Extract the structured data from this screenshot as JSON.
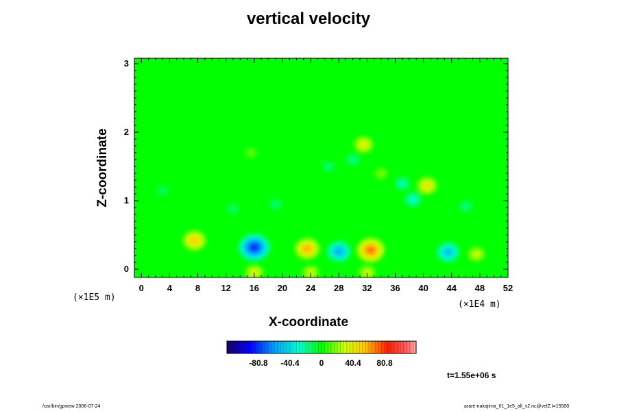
{
  "chart_data": {
    "type": "heatmap",
    "title": "vertical velocity",
    "xlabel": "X-coordinate",
    "ylabel": "Z-coordinate",
    "x_scale_label": "(×1E4 m)",
    "y_scale_label": "(×1E5 m)",
    "xlim": [
      -1,
      52
    ],
    "ylim": [
      -0.12,
      3.08
    ],
    "x_ticks": [
      "0",
      "4",
      "8",
      "12",
      "16",
      "20",
      "24",
      "28",
      "32",
      "36",
      "40",
      "44",
      "48",
      "52"
    ],
    "y_ticks": [
      "0",
      "1",
      "2",
      "3"
    ],
    "colorbar": {
      "range": [
        -121.2,
        121.2
      ],
      "tick_labels": [
        "-80.8",
        "-40.4",
        "0",
        "40.4",
        "80.8"
      ],
      "tick_values": [
        -80.8,
        -40.4,
        0,
        40.4,
        80.8
      ]
    },
    "background_value": 0,
    "features": [
      {
        "x": 7.5,
        "z": 0.42,
        "value": 52
      },
      {
        "x": 16.0,
        "z": 0.32,
        "value": -82
      },
      {
        "x": 23.5,
        "z": 0.3,
        "value": 58
      },
      {
        "x": 28.0,
        "z": 0.26,
        "value": -55
      },
      {
        "x": 32.5,
        "z": 0.28,
        "value": 70
      },
      {
        "x": 43.5,
        "z": 0.25,
        "value": -50
      },
      {
        "x": 47.5,
        "z": 0.22,
        "value": 30
      },
      {
        "x": 40.5,
        "z": 1.22,
        "value": 42
      },
      {
        "x": 31.5,
        "z": 1.82,
        "value": 38
      },
      {
        "x": 34.0,
        "z": 1.4,
        "value": 18
      },
      {
        "x": 38.5,
        "z": 1.02,
        "value": -30
      },
      {
        "x": 37.0,
        "z": 1.25,
        "value": -25
      },
      {
        "x": 30.0,
        "z": 1.6,
        "value": -20
      },
      {
        "x": 26.5,
        "z": 1.5,
        "value": -16
      },
      {
        "x": 15.5,
        "z": 1.7,
        "value": 14
      },
      {
        "x": 3.0,
        "z": 1.15,
        "value": -14
      },
      {
        "x": 19.0,
        "z": 0.95,
        "value": -16
      },
      {
        "x": 13.0,
        "z": 0.88,
        "value": -14
      },
      {
        "x": 46.0,
        "z": 0.92,
        "value": -18
      },
      {
        "x": 16.0,
        "z": -0.05,
        "value": 35
      },
      {
        "x": 24.0,
        "z": -0.05,
        "value": 30
      },
      {
        "x": 32.0,
        "z": -0.05,
        "value": 30
      }
    ]
  },
  "time_label": "t=1.55e+06 s",
  "footer_left": "/usr/bin/gpview 2006-07-24",
  "footer_right": "arare-nakajima_01_1e5_all_v2.nc@velZ,t=15500"
}
